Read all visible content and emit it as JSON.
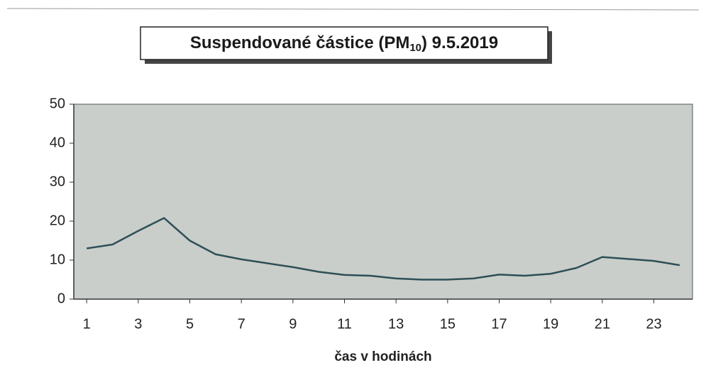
{
  "chart_data": {
    "type": "line",
    "title": [
      "Suspendované částice (PM",
      "10",
      ") 9.5.2019"
    ],
    "x_label": "čas v hodinách",
    "x": [
      1,
      2,
      3,
      4,
      5,
      6,
      7,
      8,
      9,
      10,
      11,
      12,
      13,
      14,
      15,
      16,
      17,
      18,
      19,
      20,
      21,
      22,
      23,
      24
    ],
    "series": [
      {
        "color": "#2e4f57",
        "values": [
          13,
          14,
          17.5,
          20.8,
          15,
          11.5,
          10.2,
          9.2,
          8.2,
          7,
          6.2,
          6,
          5.3,
          5,
          5,
          5.3,
          6.3,
          6,
          6.5,
          8,
          10.8,
          10.3,
          9.8,
          8.7
        ]
      }
    ],
    "xlim": [
      0.5,
      24.5
    ],
    "xticks": [
      1,
      3,
      5,
      7,
      9,
      11,
      13,
      15,
      17,
      19,
      21,
      23
    ],
    "ylim": [
      0,
      50
    ],
    "yticks": [
      0,
      10,
      20,
      30,
      40,
      50
    ],
    "background": "#c9ceca"
  }
}
